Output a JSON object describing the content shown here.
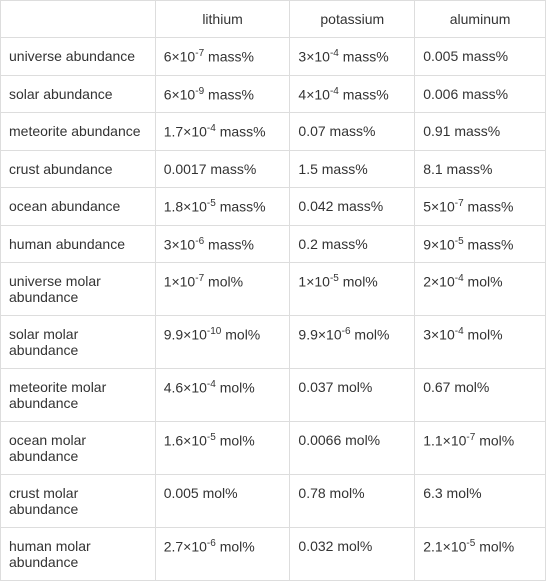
{
  "table": {
    "columns": [
      "",
      "lithium",
      "potassium",
      "aluminum"
    ],
    "rows": [
      {
        "label": "universe abundance",
        "lithium": {
          "coef": "6",
          "exp": "-7",
          "unit": "mass%"
        },
        "potassium": {
          "coef": "3",
          "exp": "-4",
          "unit": "mass%"
        },
        "aluminum": {
          "plain": "0.005 mass%"
        }
      },
      {
        "label": "solar abundance",
        "lithium": {
          "coef": "6",
          "exp": "-9",
          "unit": "mass%"
        },
        "potassium": {
          "coef": "4",
          "exp": "-4",
          "unit": "mass%"
        },
        "aluminum": {
          "plain": "0.006 mass%"
        }
      },
      {
        "label": "meteorite abundance",
        "lithium": {
          "coef": "1.7",
          "exp": "-4",
          "unit": "mass%"
        },
        "potassium": {
          "plain": "0.07 mass%"
        },
        "aluminum": {
          "plain": "0.91 mass%"
        }
      },
      {
        "label": "crust abundance",
        "lithium": {
          "plain": "0.0017 mass%"
        },
        "potassium": {
          "plain": "1.5 mass%"
        },
        "aluminum": {
          "plain": "8.1 mass%"
        }
      },
      {
        "label": "ocean abundance",
        "lithium": {
          "coef": "1.8",
          "exp": "-5",
          "unit": "mass%"
        },
        "potassium": {
          "plain": "0.042 mass%"
        },
        "aluminum": {
          "coef": "5",
          "exp": "-7",
          "unit": "mass%"
        }
      },
      {
        "label": "human abundance",
        "lithium": {
          "coef": "3",
          "exp": "-6",
          "unit": "mass%"
        },
        "potassium": {
          "plain": "0.2 mass%"
        },
        "aluminum": {
          "coef": "9",
          "exp": "-5",
          "unit": "mass%"
        }
      },
      {
        "label": "universe molar abundance",
        "lithium": {
          "coef": "1",
          "exp": "-7",
          "unit": "mol%"
        },
        "potassium": {
          "coef": "1",
          "exp": "-5",
          "unit": "mol%"
        },
        "aluminum": {
          "coef": "2",
          "exp": "-4",
          "unit": "mol%"
        }
      },
      {
        "label": "solar molar abundance",
        "lithium": {
          "coef": "9.9",
          "exp": "-10",
          "unit": "mol%"
        },
        "potassium": {
          "coef": "9.9",
          "exp": "-6",
          "unit": "mol%"
        },
        "aluminum": {
          "coef": "3",
          "exp": "-4",
          "unit": "mol%"
        }
      },
      {
        "label": "meteorite molar abundance",
        "lithium": {
          "coef": "4.6",
          "exp": "-4",
          "unit": "mol%"
        },
        "potassium": {
          "plain": "0.037 mol%"
        },
        "aluminum": {
          "plain": "0.67 mol%"
        }
      },
      {
        "label": "ocean molar abundance",
        "lithium": {
          "coef": "1.6",
          "exp": "-5",
          "unit": "mol%"
        },
        "potassium": {
          "plain": "0.0066 mol%"
        },
        "aluminum": {
          "coef": "1.1",
          "exp": "-7",
          "unit": "mol%"
        }
      },
      {
        "label": "crust molar abundance",
        "lithium": {
          "plain": "0.005 mol%"
        },
        "potassium": {
          "plain": "0.78 mol%"
        },
        "aluminum": {
          "plain": "6.3 mol%"
        }
      },
      {
        "label": "human molar abundance",
        "lithium": {
          "coef": "2.7",
          "exp": "-6",
          "unit": "mol%"
        },
        "potassium": {
          "plain": "0.032 mol%"
        },
        "aluminum": {
          "coef": "2.1",
          "exp": "-5",
          "unit": "mol%"
        }
      }
    ]
  }
}
